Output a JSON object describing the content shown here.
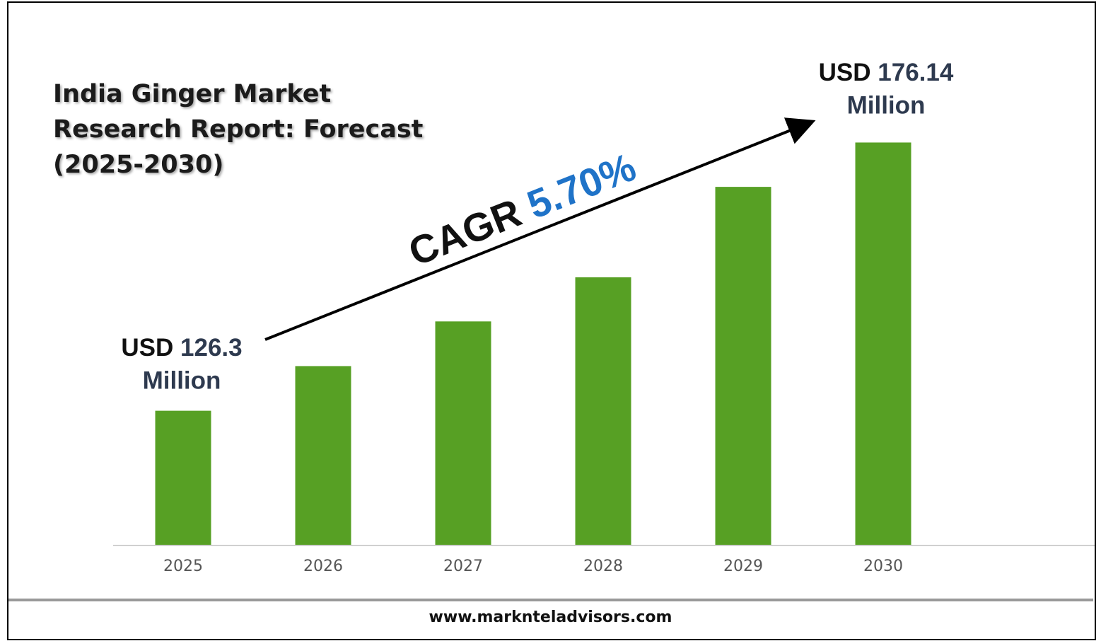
{
  "chart_data": {
    "type": "bar",
    "title": "India Ginger Market Research Report: Forecast (2025-2030)",
    "categories": [
      "2025",
      "2026",
      "2027",
      "2028",
      "2029",
      "2030"
    ],
    "values": [
      126.3,
      134.6,
      142.9,
      151.1,
      167.9,
      176.14
    ],
    "color": "#57a024",
    "ylim": [
      101.4,
      190
    ],
    "value_label_prefix": "USD",
    "value_label_suffix": "Million",
    "annotation": {
      "label": "CAGR",
      "value": "5.70%"
    },
    "source": "www.marknteladvisors.com"
  }
}
